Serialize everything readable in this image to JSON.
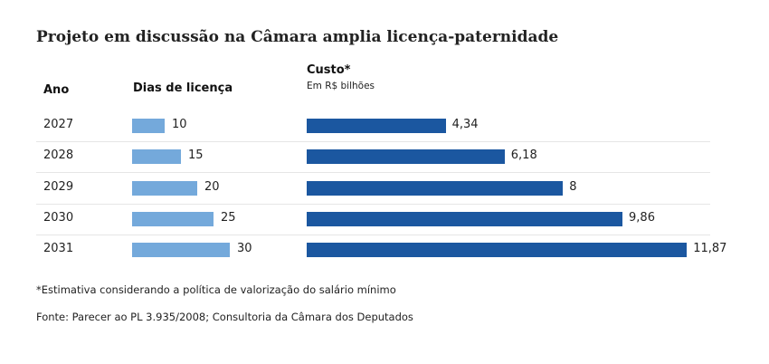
{
  "title": "Projeto em discussão na Câmara amplia licença-paternidade",
  "headers": {
    "year": "Ano",
    "days": "Dias de licença",
    "cost": "Custo*",
    "cost_unit": "Em R$ bilhões"
  },
  "colors": {
    "days_bar": "#74a9db",
    "cost_bar": "#1b57a0"
  },
  "chart_data": {
    "type": "bar",
    "orientation": "horizontal",
    "title": "Projeto em discussão na Câmara amplia licença-paternidade",
    "categories": [
      "2027",
      "2028",
      "2029",
      "2030",
      "2031"
    ],
    "series": [
      {
        "name": "Dias de licença",
        "values": [
          10,
          15,
          20,
          25,
          30
        ],
        "labels": [
          "10",
          "15",
          "20",
          "25",
          "30"
        ]
      },
      {
        "name": "Custo* (Em R$ bilhões)",
        "values": [
          4.34,
          6.18,
          8,
          9.86,
          11.87
        ],
        "labels": [
          "4,34",
          "6,18",
          "8",
          "9,86",
          "11,87"
        ]
      }
    ]
  },
  "footnote": "*Estimativa considerando a política de valorização do salário mínimo",
  "source": "Fonte: Parecer ao PL 3.935/2008; Consultoria da Câmara dos Deputados"
}
